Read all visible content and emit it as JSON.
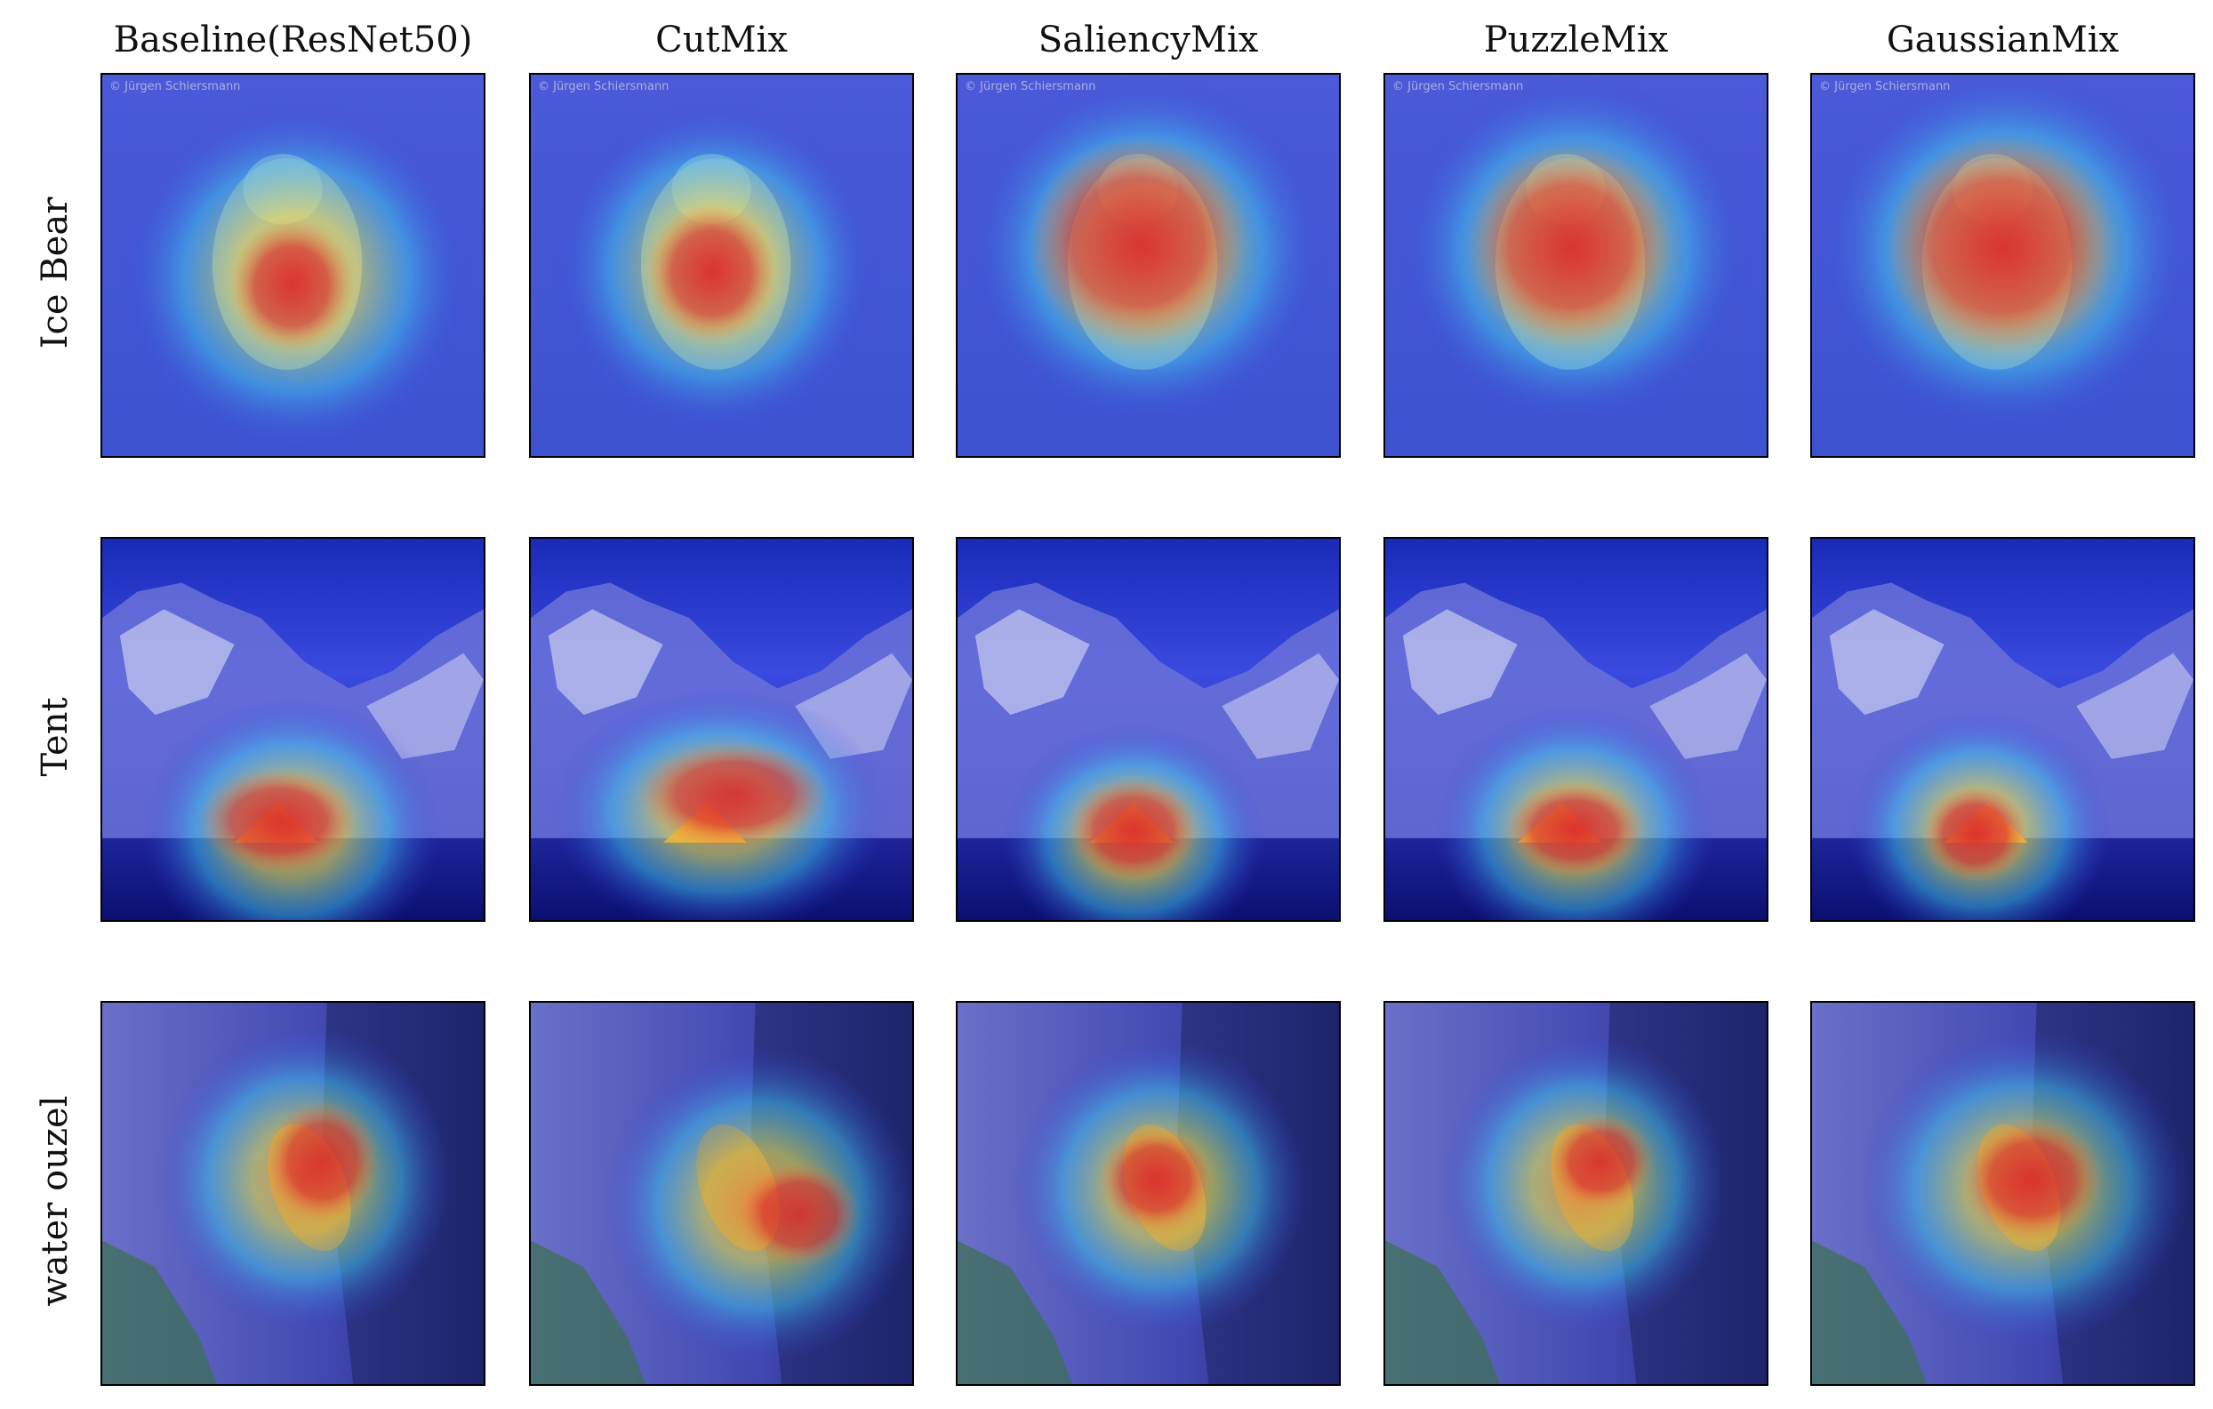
{
  "columns": [
    {
      "label": "Baseline(ResNet50)"
    },
    {
      "label": "CutMix"
    },
    {
      "label": "SaliencyMix"
    },
    {
      "label": "PuzzleMix"
    },
    {
      "label": "GaussianMix"
    }
  ],
  "rows": [
    {
      "label": "Ice Bear",
      "scene": "bear",
      "watermark": "© Jürgen Schiersmann"
    },
    {
      "label": "Tent",
      "scene": "tent",
      "watermark": ""
    },
    {
      "label": "water ouzel",
      "scene": "bird",
      "watermark": ""
    }
  ],
  "heatmap_colors": {
    "cold": "#3c3cdc",
    "cool": "#3fc8f0",
    "mid": "#e6e650",
    "warm": "#f08a40",
    "hot": "#d81e28"
  }
}
